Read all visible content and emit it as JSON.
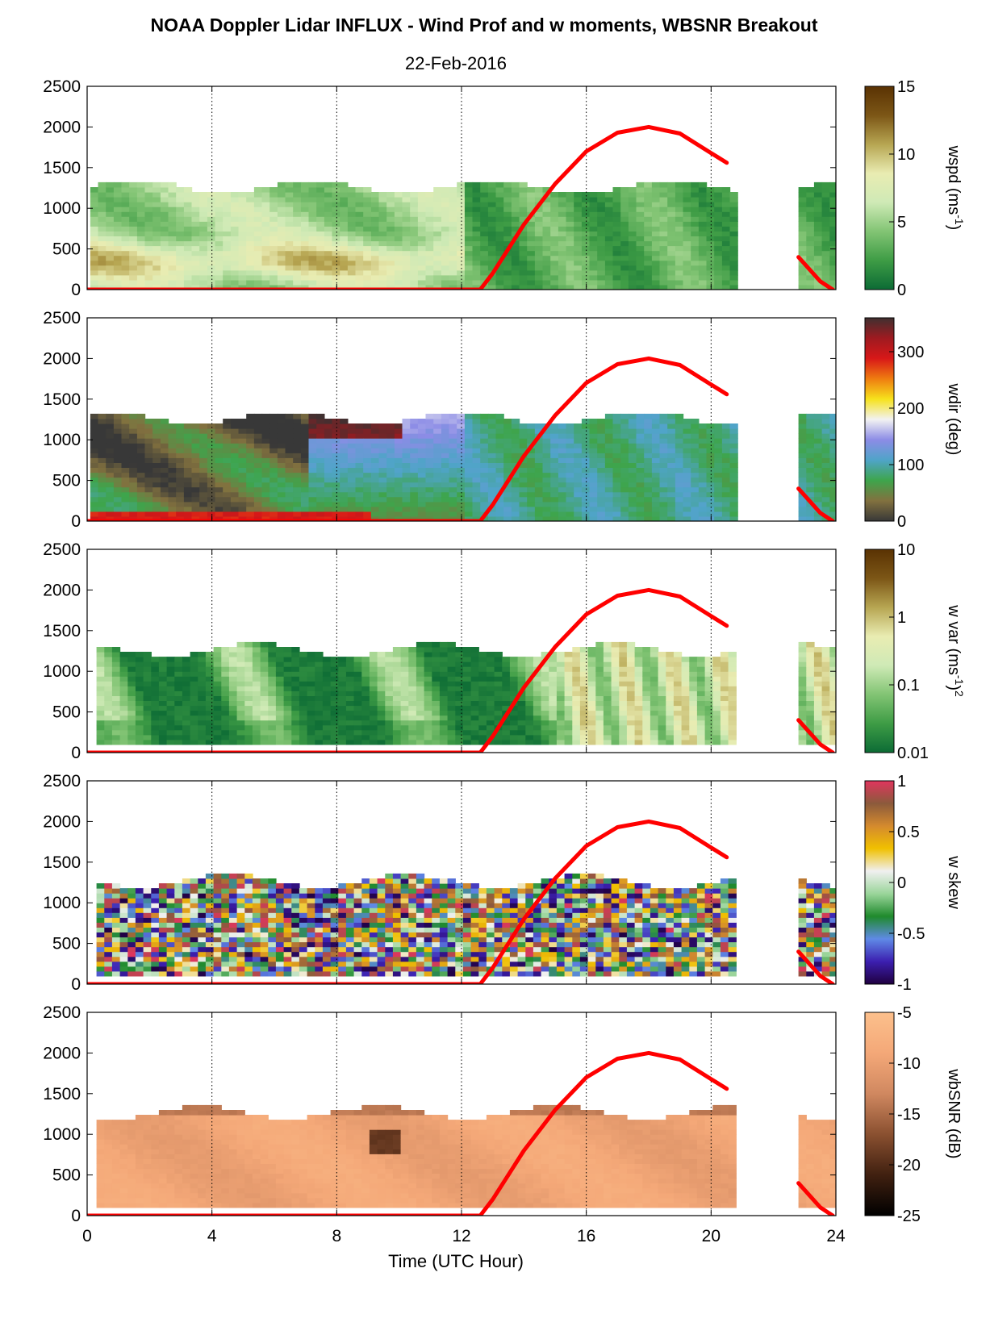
{
  "title": "NOAA Doppler Lidar INFLUX - Wind Prof and w moments, WBSNR Breakout",
  "date": "22-Feb-2016",
  "chart_data": {
    "type": "heatmap",
    "xlabel": "Time (UTC Hour)",
    "xlim": [
      0,
      24
    ],
    "xticks": [
      "0",
      "4",
      "8",
      "12",
      "16",
      "20",
      "24"
    ],
    "ylim": [
      0,
      2500
    ],
    "yticks": [
      "0",
      "500",
      "1000",
      "1500",
      "2000",
      "2500"
    ],
    "vertical_gridlines_at_hours": [
      4,
      8,
      12,
      16,
      20
    ],
    "overlay": {
      "name": "",
      "color": "#ff0000",
      "x": [
        0,
        12.3,
        12.6,
        13.0,
        14.0,
        15.0,
        16.0,
        17.0,
        18.0,
        19.0,
        20.0,
        20.5,
        22.8,
        23.5,
        23.9
      ],
      "y": [
        0,
        0,
        0,
        200,
        800,
        1300,
        1700,
        1930,
        2000,
        1920,
        1680,
        1560,
        400,
        100,
        0
      ]
    },
    "panels": [
      {
        "colorbar_label": "wspd (ms",
        "colorbar_label_sup": "-1",
        "colorbar_label_end": ")",
        "colorbar_ticks": [
          "0",
          "5",
          "10",
          "15"
        ],
        "colorbar_range": [
          0,
          15
        ],
        "colormap": [
          "#0c6b35",
          "#3e9c45",
          "#82c474",
          "#cfeab6",
          "#e9ecb2",
          "#b7a652",
          "#7c5616",
          "#5a3203"
        ],
        "data_extent_hours": [
          [
            0.1,
            20.8
          ],
          [
            22.8,
            23.9
          ]
        ],
        "data_top_m": 1300
      },
      {
        "colorbar_label": "wdir (deg)",
        "colorbar_ticks": [
          "0",
          "100",
          "200",
          "300"
        ],
        "colorbar_range": [
          0,
          360
        ],
        "colormap": [
          "#383838",
          "#82713f",
          "#3ea54c",
          "#4fa4c8",
          "#8c8ce6",
          "#f2f2f2",
          "#f6e21c",
          "#ef7c10",
          "#d81818",
          "#9e1a20",
          "#403030"
        ],
        "data_extent_hours": [
          [
            0.1,
            20.8
          ],
          [
            22.8,
            23.9
          ]
        ],
        "data_top_m": 1300
      },
      {
        "colorbar_label": "w var (ms",
        "colorbar_label_sup": "-1",
        "colorbar_label_end": ")",
        "colorbar_label_sup2": "2",
        "colorbar_ticks": [
          "0.01",
          "0.1",
          "1",
          "10"
        ],
        "colorbar_scale": "log",
        "colorbar_range": [
          0.01,
          10
        ],
        "colormap": [
          "#0c6b35",
          "#3e9c45",
          "#82c474",
          "#cfeab6",
          "#e9ecb2",
          "#b7a652",
          "#7c5616",
          "#5a3203"
        ],
        "data_extent_hours": [
          [
            0.3,
            20.8
          ],
          [
            22.8,
            23.9
          ]
        ],
        "data_top_m": 1300
      },
      {
        "colorbar_label": "w skew",
        "colorbar_ticks": [
          "-1",
          "-0.5",
          "0",
          "0.5",
          "1"
        ],
        "colorbar_range": [
          -1,
          1
        ],
        "colormap": [
          "#200040",
          "#3c1fb0",
          "#5f8ae6",
          "#1f8a2c",
          "#9ad59a",
          "#f0f0f0",
          "#f0c000",
          "#d48a2e",
          "#8b5a3c",
          "#e0355e"
        ],
        "data_extent_hours": [
          [
            0.3,
            20.8
          ],
          [
            22.8,
            23.9
          ]
        ],
        "data_top_m": 1300
      },
      {
        "colorbar_label": "wbSNR (dB)",
        "colorbar_ticks": [
          "-25",
          "-20",
          "-15",
          "-10",
          "-5"
        ],
        "colorbar_range": [
          -25,
          -5
        ],
        "colormap": [
          "#000000",
          "#402010",
          "#8a5030",
          "#d08860",
          "#f4a878",
          "#fcc08c"
        ],
        "data_extent_hours": [
          [
            0.3,
            20.8
          ],
          [
            22.8,
            23.9
          ]
        ],
        "data_top_m": 1300
      }
    ]
  }
}
